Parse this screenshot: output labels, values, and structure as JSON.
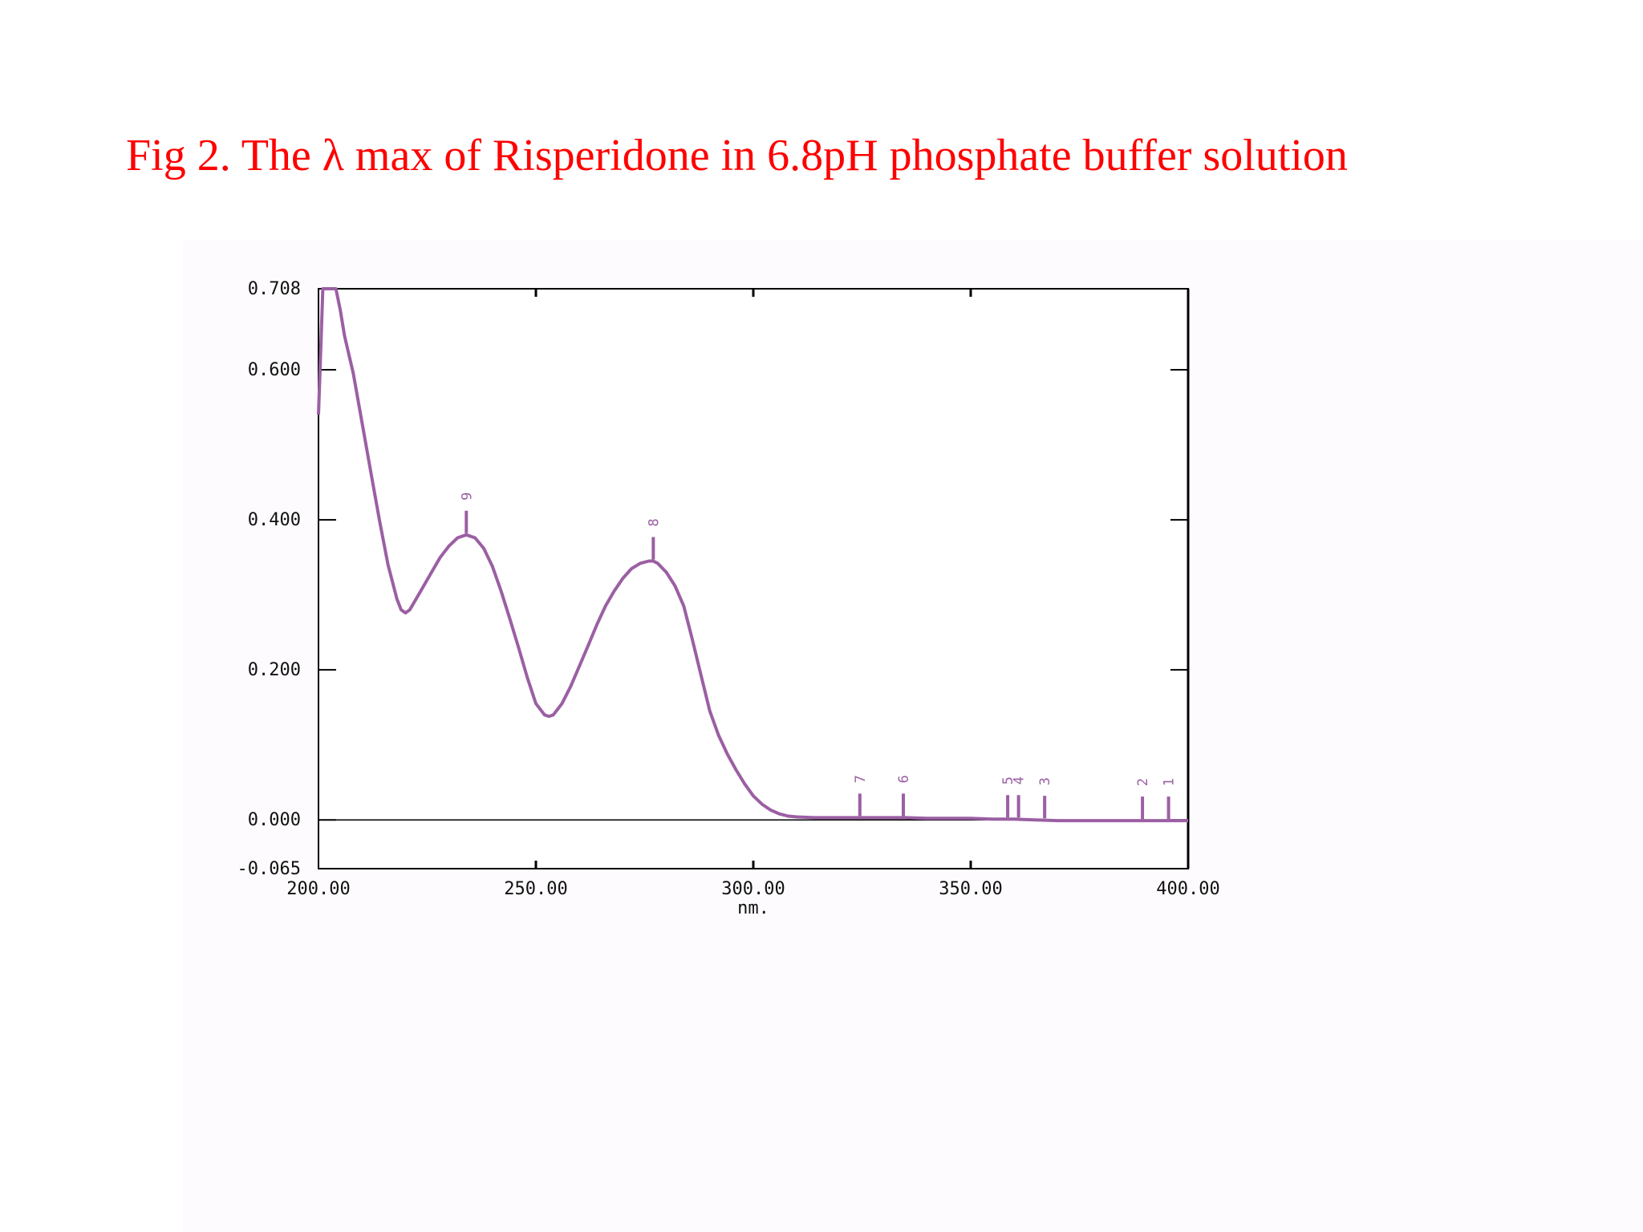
{
  "slide": {
    "title": "Fig 2. The λ max of Risperidone in 6.8pH phosphate buffer solution"
  },
  "colors": {
    "title": "#ff0000",
    "trace": "#9b5fa3",
    "axes": "#000000",
    "plot_background": "#fdfbfd"
  },
  "chart_data": {
    "type": "line",
    "title": "",
    "xlabel": "nm.",
    "ylabel": "",
    "xlim": [
      200,
      400
    ],
    "ylim": [
      -0.065,
      0.708
    ],
    "grid": false,
    "x_ticks": [
      200,
      250,
      300,
      350,
      400
    ],
    "x_tick_labels": [
      "200.00",
      "250.00",
      "300.00",
      "350.00",
      "400.00"
    ],
    "y_ticks": [
      -0.065,
      0,
      0.2,
      0.4,
      0.6,
      0.708
    ],
    "y_tick_labels": [
      "-0.065",
      "0.000",
      "0.200",
      "0.400",
      "0.600",
      "0.708"
    ],
    "zero_line": 0,
    "series": [
      {
        "color": "#9b5fa3",
        "x": [
          200,
          201,
          202,
          203,
          204,
          205,
          206,
          208,
          210,
          212,
          214,
          216,
          218,
          219,
          220,
          221,
          222,
          224,
          226,
          228,
          230,
          232,
          234,
          236,
          238,
          240,
          242,
          244,
          246,
          248,
          250,
          252,
          253,
          254,
          256,
          258,
          260,
          262,
          264,
          266,
          268,
          270,
          272,
          274,
          276,
          277,
          278,
          280,
          282,
          284,
          286,
          288,
          290,
          292,
          294,
          296,
          298,
          300,
          302,
          304,
          306,
          308,
          310,
          314,
          318,
          322,
          326,
          330,
          335,
          340,
          345,
          350,
          355,
          360,
          365,
          370,
          375,
          380,
          385,
          390,
          395,
          400
        ],
        "y": [
          0.54,
          0.708,
          0.708,
          0.708,
          0.708,
          0.68,
          0.645,
          0.595,
          0.53,
          0.465,
          0.4,
          0.34,
          0.295,
          0.28,
          0.276,
          0.28,
          0.29,
          0.31,
          0.33,
          0.35,
          0.365,
          0.376,
          0.38,
          0.376,
          0.362,
          0.338,
          0.305,
          0.268,
          0.23,
          0.19,
          0.155,
          0.14,
          0.138,
          0.14,
          0.155,
          0.178,
          0.205,
          0.232,
          0.26,
          0.285,
          0.305,
          0.322,
          0.335,
          0.342,
          0.345,
          0.345,
          0.342,
          0.33,
          0.312,
          0.285,
          0.24,
          0.192,
          0.145,
          0.113,
          0.088,
          0.067,
          0.048,
          0.032,
          0.021,
          0.013,
          0.008,
          0.005,
          0.004,
          0.003,
          0.003,
          0.003,
          0.003,
          0.003,
          0.003,
          0.002,
          0.002,
          0.002,
          0.001,
          0.001,
          0.0,
          -0.001,
          -0.001,
          -0.001,
          -0.001,
          -0.001,
          -0.001,
          -0.001
        ]
      }
    ],
    "peak_markers": [
      {
        "label": "9",
        "x": 234,
        "y": 0.38
      },
      {
        "label": "8",
        "x": 277,
        "y": 0.345
      },
      {
        "label": "7",
        "x": 324.5,
        "y": 0.003
      },
      {
        "label": "6",
        "x": 334.5,
        "y": 0.003
      },
      {
        "label": "5",
        "x": 358.5,
        "y": 0.001
      },
      {
        "label": "4",
        "x": 361,
        "y": 0.001
      },
      {
        "label": "3",
        "x": 367,
        "y": 0.0
      },
      {
        "label": "2",
        "x": 389.5,
        "y": -0.001
      },
      {
        "label": "1",
        "x": 395.5,
        "y": -0.001
      }
    ]
  }
}
